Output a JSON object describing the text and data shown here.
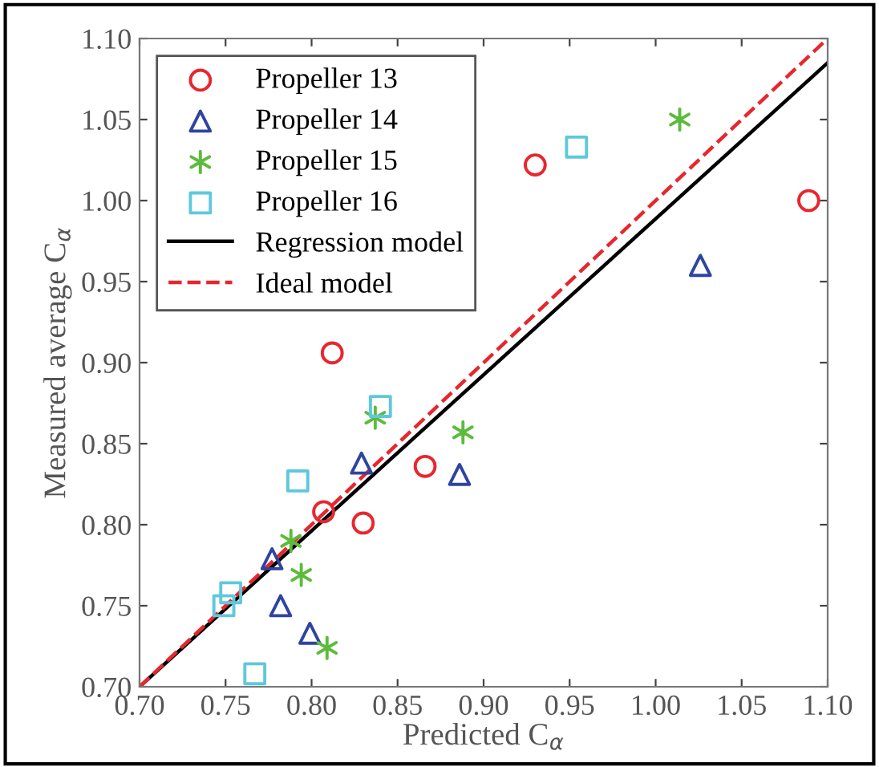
{
  "chart_data": {
    "type": "scatter",
    "xlabel": "Predicted C$_{α}$",
    "ylabel": "Measured average C$_{α}$",
    "xlim": [
      0.7,
      1.1
    ],
    "ylim": [
      0.7,
      1.1
    ],
    "xticks": [
      {
        "value": 0.7,
        "label": "0.70"
      },
      {
        "value": 0.75,
        "label": "0.75"
      },
      {
        "value": 0.8,
        "label": "0.80"
      },
      {
        "value": 0.85,
        "label": "0.85"
      },
      {
        "value": 0.9,
        "label": "0.90"
      },
      {
        "value": 0.95,
        "label": "0.95"
      },
      {
        "value": 1.0,
        "label": "1.00"
      },
      {
        "value": 1.05,
        "label": "1.05"
      },
      {
        "value": 1.1,
        "label": "1.10"
      }
    ],
    "yticks": [
      {
        "value": 0.7,
        "label": "0.70"
      },
      {
        "value": 0.75,
        "label": "0.75"
      },
      {
        "value": 0.8,
        "label": "0.80"
      },
      {
        "value": 0.85,
        "label": "0.85"
      },
      {
        "value": 0.9,
        "label": "0.90"
      },
      {
        "value": 0.95,
        "label": "0.95"
      },
      {
        "value": 1.0,
        "label": "1.00"
      },
      {
        "value": 1.05,
        "label": "1.05"
      },
      {
        "value": 1.1,
        "label": "1.10"
      }
    ],
    "grid": false,
    "legend": "top left",
    "series": [
      {
        "name": "Propeller 13",
        "marker": "circle",
        "color": "#e8262e",
        "x": [
          0.93,
          1.089,
          0.812,
          0.866,
          0.807,
          0.83
        ],
        "values": [
          1.022,
          1.0,
          0.906,
          0.836,
          0.808,
          0.801
        ]
      },
      {
        "name": "Propeller 14",
        "marker": "triangle",
        "color": "#2e44a0",
        "x": [
          1.026,
          0.886,
          0.829,
          0.777,
          0.782,
          0.799
        ],
        "values": [
          0.96,
          0.831,
          0.838,
          0.779,
          0.75,
          0.733
        ]
      },
      {
        "name": "Propeller 15",
        "marker": "cross",
        "color": "#5dbb3c",
        "x": [
          1.014,
          0.888,
          0.837,
          0.788,
          0.794,
          0.809
        ],
        "values": [
          1.05,
          0.857,
          0.866,
          0.79,
          0.769,
          0.724
        ]
      },
      {
        "name": "Propeller 16",
        "marker": "square",
        "color": "#5ec8dc",
        "x": [
          0.954,
          0.84,
          0.792,
          0.753,
          0.749,
          0.767
        ],
        "values": [
          1.033,
          0.873,
          0.827,
          0.758,
          0.75,
          0.708
        ]
      },
      {
        "name": "Regression model",
        "type": "line",
        "line_style": "solid",
        "color": "#000000",
        "x": [
          0.7,
          1.1
        ],
        "values": [
          0.7,
          1.085
        ]
      },
      {
        "name": "Ideal model",
        "type": "line",
        "line_style": "dashed",
        "color": "#e8262e",
        "x": [
          0.7,
          1.1
        ],
        "values": [
          0.7,
          1.1
        ]
      }
    ]
  }
}
